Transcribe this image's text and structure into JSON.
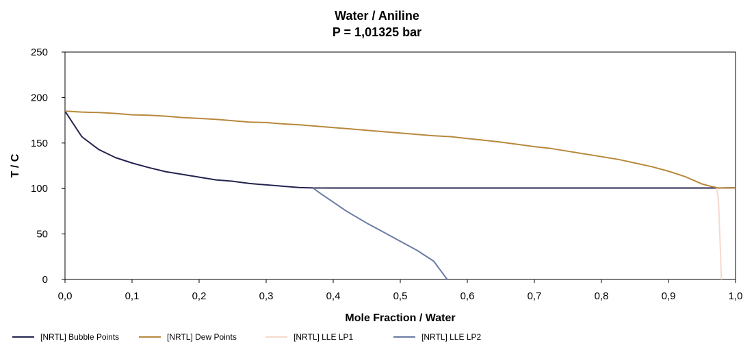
{
  "chart_data": {
    "type": "line",
    "title": "Water / Aniline",
    "subtitle": "P = 1,01325 bar",
    "xlabel": "Mole Fraction / Water",
    "ylabel": "T / C",
    "xlim": [
      0,
      1
    ],
    "ylim": [
      0,
      250
    ],
    "x_ticks": [
      "0,0",
      "0,1",
      "0,2",
      "0,3",
      "0,4",
      "0,5",
      "0,6",
      "0,7",
      "0,8",
      "0,9",
      "1,0"
    ],
    "x_tick_values": [
      0,
      0.1,
      0.2,
      0.3,
      0.4,
      0.5,
      0.6,
      0.7,
      0.8,
      0.9,
      1.0
    ],
    "y_ticks": [
      "0",
      "50",
      "100",
      "150",
      "200",
      "250"
    ],
    "y_tick_values": [
      0,
      50,
      100,
      150,
      200,
      250
    ],
    "grid": false,
    "legend_position": "bottom",
    "series": [
      {
        "name": "[NRTL] Bubble Points",
        "color": "#23234f",
        "points": [
          [
            0,
            185
          ],
          [
            0.025,
            157
          ],
          [
            0.05,
            143
          ],
          [
            0.075,
            134
          ],
          [
            0.1,
            128
          ],
          [
            0.125,
            123
          ],
          [
            0.15,
            118.5
          ],
          [
            0.175,
            115.5
          ],
          [
            0.2,
            112.5
          ],
          [
            0.225,
            109.5
          ],
          [
            0.25,
            108
          ],
          [
            0.275,
            105.5
          ],
          [
            0.3,
            104
          ],
          [
            0.325,
            102.5
          ],
          [
            0.35,
            101
          ],
          [
            0.37,
            100.6
          ],
          [
            0.4,
            100.5
          ],
          [
            0.5,
            100.5
          ],
          [
            0.6,
            100.5
          ],
          [
            0.7,
            100.5
          ],
          [
            0.8,
            100.5
          ],
          [
            0.9,
            100.5
          ],
          [
            0.97,
            100.5
          ],
          [
            1.0,
            100.8
          ]
        ]
      },
      {
        "name": "[NRTL] Dew Points",
        "color": "#b8883c",
        "points": [
          [
            0,
            185
          ],
          [
            0.025,
            184
          ],
          [
            0.05,
            183.5
          ],
          [
            0.075,
            182.5
          ],
          [
            0.1,
            181
          ],
          [
            0.125,
            180.5
          ],
          [
            0.15,
            179.5
          ],
          [
            0.175,
            178
          ],
          [
            0.2,
            177
          ],
          [
            0.225,
            176
          ],
          [
            0.25,
            174.5
          ],
          [
            0.275,
            173
          ],
          [
            0.3,
            172.5
          ],
          [
            0.325,
            171
          ],
          [
            0.35,
            170
          ],
          [
            0.4,
            167
          ],
          [
            0.45,
            164
          ],
          [
            0.5,
            161
          ],
          [
            0.55,
            158
          ],
          [
            0.575,
            157
          ],
          [
            0.6,
            155
          ],
          [
            0.625,
            153
          ],
          [
            0.65,
            151
          ],
          [
            0.675,
            148.5
          ],
          [
            0.7,
            146
          ],
          [
            0.725,
            144
          ],
          [
            0.75,
            141
          ],
          [
            0.775,
            138
          ],
          [
            0.8,
            135
          ],
          [
            0.825,
            132
          ],
          [
            0.85,
            128
          ],
          [
            0.875,
            124
          ],
          [
            0.9,
            119
          ],
          [
            0.925,
            113
          ],
          [
            0.95,
            105
          ],
          [
            0.965,
            102
          ],
          [
            0.975,
            100.5
          ],
          [
            1.0,
            100.8
          ]
        ]
      },
      {
        "name": "[NRTL] LLE LP1",
        "color": "#f8d8cc",
        "points": [
          [
            0.972,
            100.5
          ],
          [
            0.974,
            90
          ],
          [
            0.975,
            80
          ],
          [
            0.976,
            60
          ],
          [
            0.977,
            40
          ],
          [
            0.978,
            20
          ],
          [
            0.979,
            0
          ]
        ]
      },
      {
        "name": "[NRTL] LLE LP2",
        "color": "#6a7aa4",
        "points": [
          [
            0.37,
            100.5
          ],
          [
            0.38,
            95
          ],
          [
            0.4,
            85
          ],
          [
            0.42,
            75
          ],
          [
            0.45,
            62
          ],
          [
            0.475,
            52
          ],
          [
            0.5,
            42
          ],
          [
            0.525,
            32
          ],
          [
            0.55,
            20
          ],
          [
            0.555,
            15
          ],
          [
            0.56,
            10
          ],
          [
            0.57,
            0
          ]
        ]
      }
    ]
  }
}
